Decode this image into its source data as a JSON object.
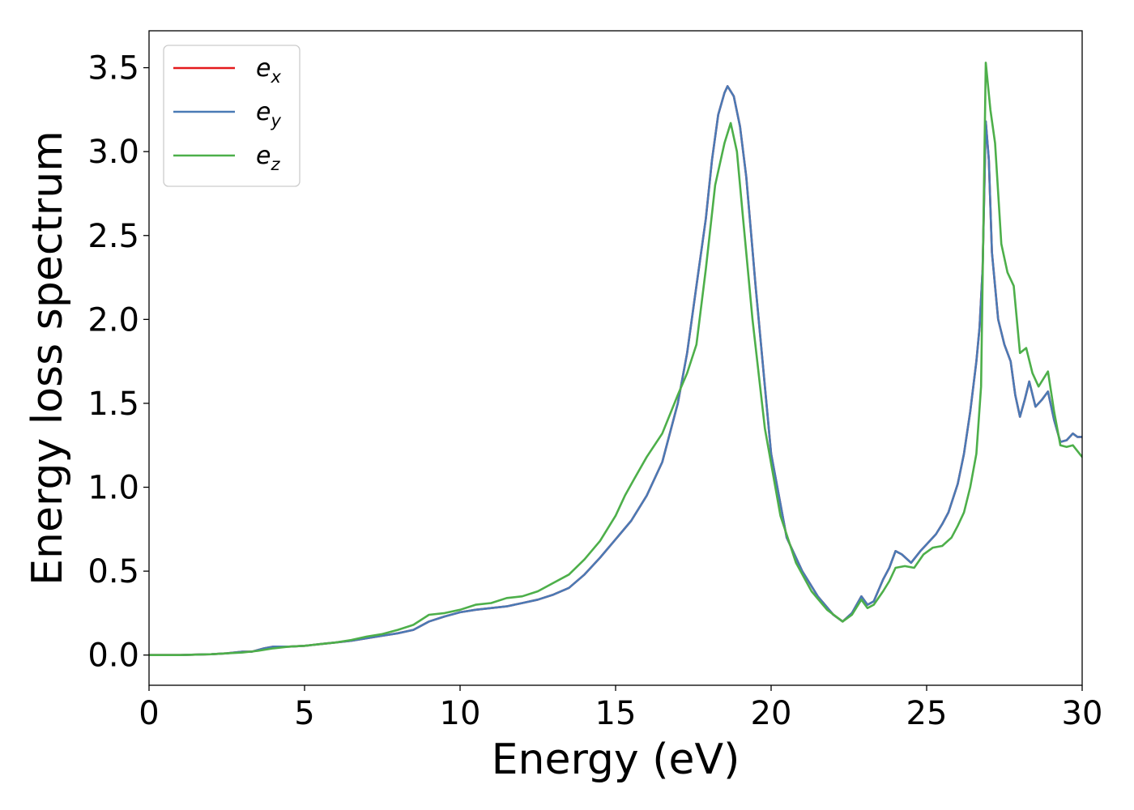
{
  "chart_data": {
    "type": "line",
    "xlabel": "Energy (eV)",
    "ylabel": "Energy loss spectrum",
    "xlim": [
      0,
      30
    ],
    "ylim": [
      -0.18,
      3.72
    ],
    "xticks": [
      "0",
      "5",
      "10",
      "15",
      "20",
      "25",
      "30"
    ],
    "yticks": [
      "0.0",
      "0.5",
      "1.0",
      "1.5",
      "2.0",
      "2.5",
      "3.0",
      "3.5"
    ],
    "grid": false,
    "legend_position": "top-left",
    "series": [
      {
        "name": "x",
        "legend_base": "e",
        "legend_sub": "x",
        "color": "#e41a1c",
        "x": [
          0,
          1,
          2,
          2.5,
          3,
          3.3,
          3.7,
          4,
          4.5,
          5,
          5.5,
          6,
          6.5,
          7,
          7.5,
          8,
          8.5,
          9,
          9.5,
          10,
          10.5,
          11,
          11.5,
          12,
          12.5,
          13,
          13.5,
          14,
          14.5,
          15,
          15.5,
          16,
          16.5,
          17,
          17.3,
          17.6,
          17.9,
          18.1,
          18.3,
          18.5,
          18.6,
          18.8,
          19,
          19.2,
          19.5,
          20,
          20.5,
          21,
          21.5,
          22,
          22.3,
          22.6,
          22.9,
          23.1,
          23.3,
          23.6,
          23.8,
          24,
          24.2,
          24.5,
          24.8,
          25,
          25.3,
          25.5,
          25.7,
          26,
          26.2,
          26.4,
          26.6,
          26.7,
          26.8,
          26.9,
          27,
          27.1,
          27.3,
          27.5,
          27.7,
          27.85,
          28,
          28.15,
          28.3,
          28.5,
          28.7,
          28.9,
          29.1,
          29.3,
          29.5,
          29.7,
          29.85,
          30
        ],
        "y": [
          0.0,
          0.0,
          0.005,
          0.01,
          0.02,
          0.02,
          0.04,
          0.05,
          0.05,
          0.055,
          0.065,
          0.075,
          0.085,
          0.1,
          0.115,
          0.13,
          0.15,
          0.2,
          0.23,
          0.255,
          0.27,
          0.28,
          0.29,
          0.31,
          0.33,
          0.36,
          0.4,
          0.48,
          0.58,
          0.69,
          0.8,
          0.95,
          1.15,
          1.5,
          1.8,
          2.2,
          2.6,
          2.95,
          3.22,
          3.35,
          3.39,
          3.33,
          3.15,
          2.85,
          2.2,
          1.2,
          0.7,
          0.5,
          0.35,
          0.24,
          0.2,
          0.25,
          0.35,
          0.3,
          0.32,
          0.45,
          0.52,
          0.62,
          0.6,
          0.55,
          0.62,
          0.66,
          0.72,
          0.78,
          0.85,
          1.02,
          1.2,
          1.45,
          1.75,
          1.95,
          2.3,
          3.18,
          2.95,
          2.4,
          2.0,
          1.85,
          1.75,
          1.55,
          1.42,
          1.52,
          1.63,
          1.48,
          1.52,
          1.57,
          1.4,
          1.27,
          1.28,
          1.32,
          1.3,
          1.3
        ]
      },
      {
        "name": "y",
        "legend_base": "e",
        "legend_sub": "y",
        "color": "#4a7ab5",
        "x": [
          0,
          1,
          2,
          2.5,
          3,
          3.3,
          3.7,
          4,
          4.5,
          5,
          5.5,
          6,
          6.5,
          7,
          7.5,
          8,
          8.5,
          9,
          9.5,
          10,
          10.5,
          11,
          11.5,
          12,
          12.5,
          13,
          13.5,
          14,
          14.5,
          15,
          15.5,
          16,
          16.5,
          17,
          17.3,
          17.6,
          17.9,
          18.1,
          18.3,
          18.5,
          18.6,
          18.8,
          19,
          19.2,
          19.5,
          20,
          20.5,
          21,
          21.5,
          22,
          22.3,
          22.6,
          22.9,
          23.1,
          23.3,
          23.6,
          23.8,
          24,
          24.2,
          24.5,
          24.8,
          25,
          25.3,
          25.5,
          25.7,
          26,
          26.2,
          26.4,
          26.6,
          26.7,
          26.8,
          26.9,
          27,
          27.1,
          27.3,
          27.5,
          27.7,
          27.85,
          28,
          28.15,
          28.3,
          28.5,
          28.7,
          28.9,
          29.1,
          29.3,
          29.5,
          29.7,
          29.85,
          30
        ],
        "y": [
          0.0,
          0.0,
          0.005,
          0.01,
          0.02,
          0.02,
          0.04,
          0.05,
          0.05,
          0.055,
          0.065,
          0.075,
          0.085,
          0.1,
          0.115,
          0.13,
          0.15,
          0.2,
          0.23,
          0.255,
          0.27,
          0.28,
          0.29,
          0.31,
          0.33,
          0.36,
          0.4,
          0.48,
          0.58,
          0.69,
          0.8,
          0.95,
          1.15,
          1.5,
          1.8,
          2.2,
          2.6,
          2.95,
          3.22,
          3.35,
          3.39,
          3.33,
          3.15,
          2.85,
          2.2,
          1.2,
          0.7,
          0.5,
          0.35,
          0.24,
          0.2,
          0.25,
          0.35,
          0.3,
          0.32,
          0.45,
          0.52,
          0.62,
          0.6,
          0.55,
          0.62,
          0.66,
          0.72,
          0.78,
          0.85,
          1.02,
          1.2,
          1.45,
          1.75,
          1.95,
          2.3,
          3.18,
          2.95,
          2.4,
          2.0,
          1.85,
          1.75,
          1.55,
          1.42,
          1.52,
          1.63,
          1.48,
          1.52,
          1.57,
          1.4,
          1.27,
          1.28,
          1.32,
          1.3,
          1.3
        ]
      },
      {
        "name": "z",
        "legend_base": "e",
        "legend_sub": "z",
        "color": "#4daf4a",
        "x": [
          0,
          1,
          2,
          2.5,
          3,
          3.5,
          4,
          4.5,
          5,
          5.5,
          6,
          6.5,
          7,
          7.5,
          8,
          8.5,
          9,
          9.5,
          10,
          10.5,
          11,
          11.5,
          12,
          12.5,
          13,
          13.5,
          14,
          14.5,
          15,
          15.3,
          15.6,
          16,
          16.5,
          17,
          17.3,
          17.6,
          17.9,
          18.2,
          18.5,
          18.7,
          18.9,
          19.1,
          19.4,
          19.8,
          20.3,
          20.8,
          21.3,
          21.8,
          22.3,
          22.6,
          22.9,
          23.1,
          23.3,
          23.6,
          23.8,
          24,
          24.3,
          24.6,
          24.9,
          25.2,
          25.5,
          25.8,
          26,
          26.2,
          26.4,
          26.6,
          26.75,
          26.9,
          27.05,
          27.2,
          27.4,
          27.6,
          27.8,
          28,
          28.2,
          28.4,
          28.6,
          28.9,
          29.1,
          29.3,
          29.5,
          29.7,
          30
        ],
        "y": [
          0.0,
          0.0,
          0.005,
          0.01,
          0.015,
          0.025,
          0.04,
          0.05,
          0.055,
          0.065,
          0.075,
          0.09,
          0.11,
          0.125,
          0.15,
          0.18,
          0.24,
          0.25,
          0.27,
          0.3,
          0.31,
          0.34,
          0.35,
          0.38,
          0.43,
          0.48,
          0.57,
          0.68,
          0.83,
          0.95,
          1.05,
          1.18,
          1.32,
          1.55,
          1.68,
          1.85,
          2.3,
          2.8,
          3.05,
          3.17,
          3.0,
          2.6,
          2.0,
          1.35,
          0.83,
          0.55,
          0.38,
          0.27,
          0.2,
          0.24,
          0.33,
          0.28,
          0.3,
          0.38,
          0.44,
          0.52,
          0.53,
          0.52,
          0.6,
          0.64,
          0.65,
          0.7,
          0.77,
          0.85,
          1.0,
          1.2,
          1.6,
          3.53,
          3.25,
          3.05,
          2.45,
          2.28,
          2.2,
          1.8,
          1.83,
          1.68,
          1.6,
          1.69,
          1.45,
          1.25,
          1.24,
          1.25,
          1.18
        ]
      }
    ]
  }
}
